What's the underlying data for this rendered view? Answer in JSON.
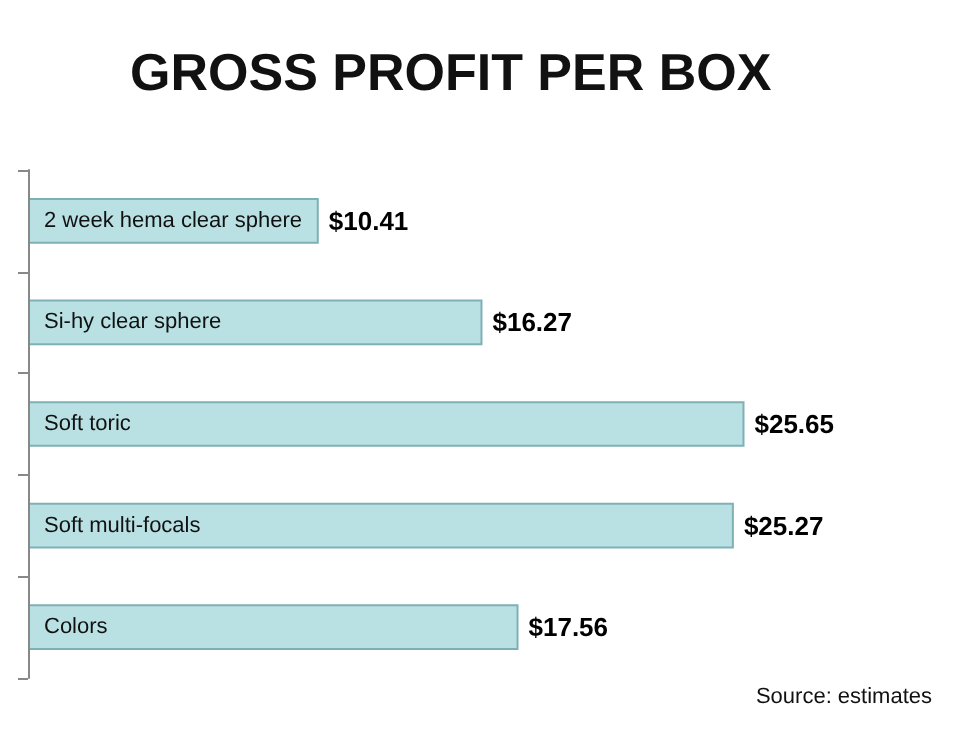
{
  "chart_data": {
    "type": "bar",
    "orientation": "horizontal",
    "title": "GROSS PROFIT PER BOX",
    "categories": [
      "2 week hema clear sphere",
      "Si-hy clear sphere",
      "Soft toric",
      "Soft multi-focals",
      "Colors"
    ],
    "values": [
      10.41,
      16.27,
      25.65,
      25.27,
      17.56
    ],
    "color": "#b9e1e4",
    "value_labels": [
      "$10.41",
      "$16.27",
      "$25.65",
      "$25.27",
      "$17.56"
    ],
    "annotations": [
      "Source: estimates"
    ]
  }
}
